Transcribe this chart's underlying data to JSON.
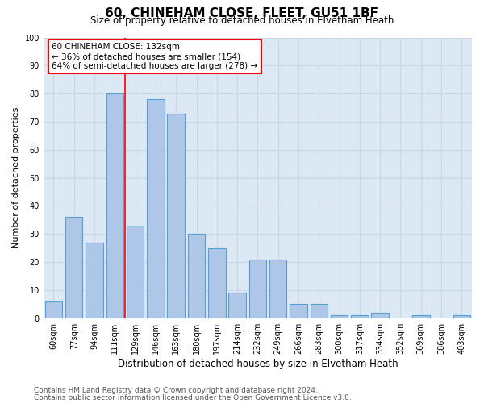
{
  "title_line1": "60, CHINEHAM CLOSE, FLEET, GU51 1BF",
  "title_line2": "Size of property relative to detached houses in Elvetham Heath",
  "xlabel": "Distribution of detached houses by size in Elvetham Heath",
  "ylabel": "Number of detached properties",
  "categories": [
    "60sqm",
    "77sqm",
    "94sqm",
    "111sqm",
    "129sqm",
    "146sqm",
    "163sqm",
    "180sqm",
    "197sqm",
    "214sqm",
    "232sqm",
    "249sqm",
    "266sqm",
    "283sqm",
    "300sqm",
    "317sqm",
    "334sqm",
    "352sqm",
    "369sqm",
    "386sqm",
    "403sqm"
  ],
  "bar_heights": [
    6,
    36,
    27,
    80,
    33,
    78,
    73,
    30,
    25,
    9,
    21,
    21,
    5,
    5,
    1,
    1,
    2,
    0,
    1,
    0,
    1
  ],
  "bar_color": "#aec6e8",
  "bar_edge_color": "#5a9fd4",
  "bar_edge_width": 0.8,
  "vline_color": "red",
  "vline_x": 3.5,
  "annotation_box_text": "60 CHINEHAM CLOSE: 132sqm\n← 36% of detached houses are smaller (154)\n64% of semi-detached houses are larger (278) →",
  "annotation_fontsize": 7.5,
  "annotation_box_color": "white",
  "annotation_box_edgecolor": "red",
  "ylim": [
    0,
    100
  ],
  "yticks": [
    0,
    10,
    20,
    30,
    40,
    50,
    60,
    70,
    80,
    90,
    100
  ],
  "grid_color": "#c8d8e8",
  "bg_color": "#dce8f4",
  "footer_line1": "Contains HM Land Registry data © Crown copyright and database right 2024.",
  "footer_line2": "Contains public sector information licensed under the Open Government Licence v3.0.",
  "footer_fontsize": 6.5,
  "title_fontsize1": 11,
  "title_fontsize2": 8.5,
  "ylabel_fontsize": 8,
  "xlabel_fontsize": 8.5,
  "tick_fontsize": 7
}
